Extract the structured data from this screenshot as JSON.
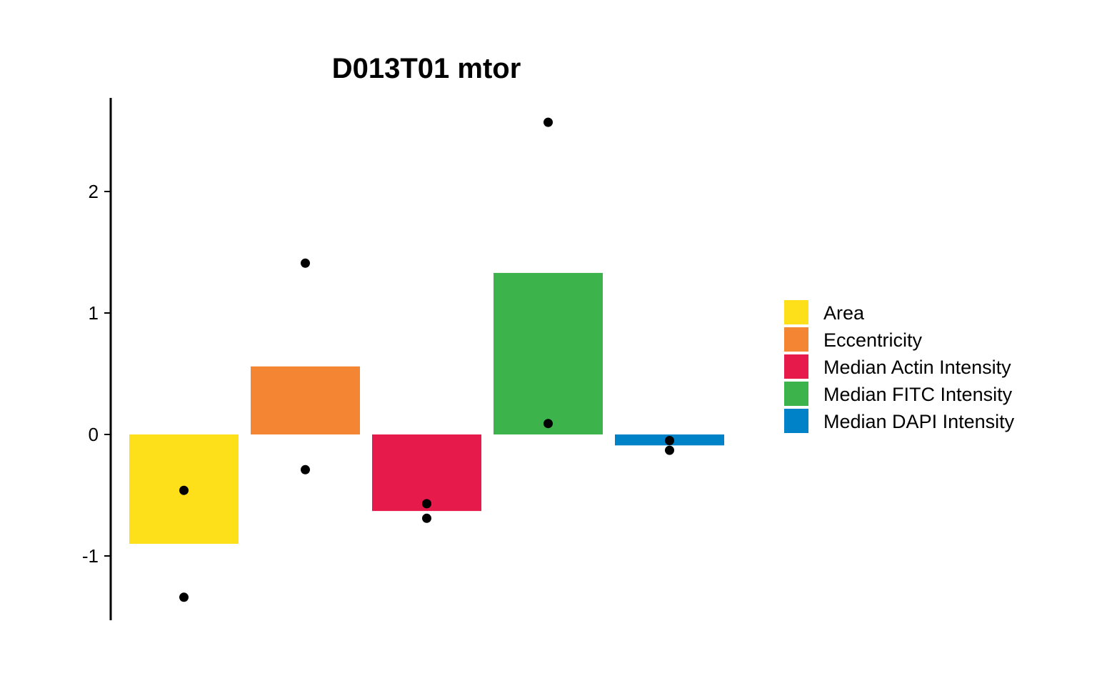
{
  "chart_data": {
    "type": "bar",
    "title": "D013T01 mtor",
    "xlabel": "",
    "ylabel": "",
    "ylim": [
      -1.53,
      2.75
    ],
    "yticks": [
      2,
      1,
      0,
      -1
    ],
    "ytick_labels": [
      "2",
      "1",
      "0",
      "-1"
    ],
    "grid": false,
    "legend_position": "right",
    "series": [
      {
        "name": "Area",
        "color": "#FDE01A",
        "value": -0.9,
        "points": [
          -0.46,
          -1.34
        ]
      },
      {
        "name": "Eccentricity",
        "color": "#F48533",
        "value": 0.56,
        "points": [
          1.41,
          -0.29
        ]
      },
      {
        "name": "Median Actin Intensity",
        "color": "#E61B4B",
        "value": -0.63,
        "points": [
          -0.57,
          -0.69
        ]
      },
      {
        "name": "Median FITC Intensity",
        "color": "#3CB44B",
        "value": 1.33,
        "points": [
          2.57,
          0.09
        ]
      },
      {
        "name": "Median DAPI Intensity",
        "color": "#0082C8",
        "value": -0.09,
        "points": [
          -0.05,
          -0.13
        ]
      }
    ]
  }
}
